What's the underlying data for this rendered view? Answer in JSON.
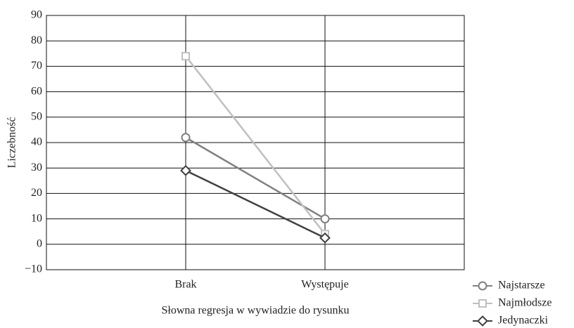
{
  "chart_data": {
    "type": "line",
    "x_label": "Słowna regresja w wywiadzie do rysunku",
    "y_label": "Liczebność",
    "categories": [
      "Brak",
      "Występuje"
    ],
    "series": [
      {
        "name": "Najstarsze",
        "color": "#808080",
        "marker": "circle",
        "values": [
          42,
          10
        ]
      },
      {
        "name": "Najmłodsze",
        "color": "#c0c0c0",
        "marker": "square",
        "values": [
          74,
          4
        ]
      },
      {
        "name": "Jedynaczki",
        "color": "#404040",
        "marker": "diamond",
        "values": [
          29,
          2.5
        ]
      }
    ],
    "ylim": [
      -10,
      90
    ],
    "yticks": [
      {
        "value": -10,
        "label": "−10"
      },
      0,
      10,
      20,
      30,
      40,
      50,
      60,
      70,
      80,
      90
    ],
    "grid": true,
    "legend": "bottom-right"
  }
}
